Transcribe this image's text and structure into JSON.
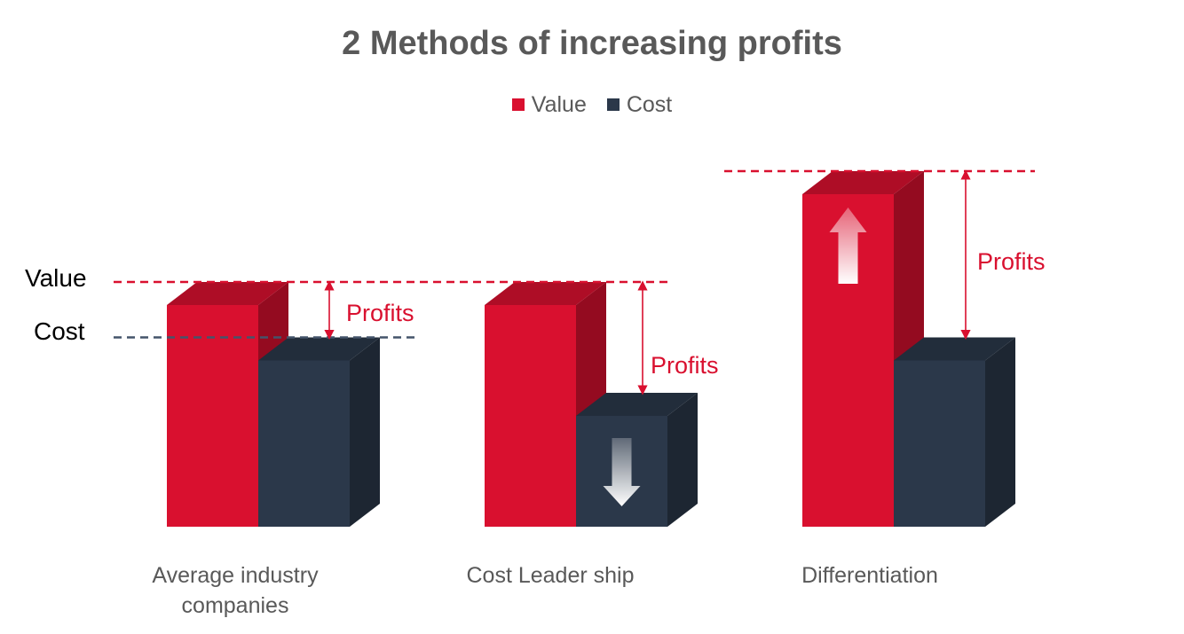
{
  "chart_data": {
    "type": "bar",
    "title": "2 Methods of increasing profits",
    "categories": [
      "Average industry companies",
      "Cost Leader ship",
      "Differentiation"
    ],
    "series": [
      {
        "name": "Value",
        "values": [
          100,
          100,
          150
        ]
      },
      {
        "name": "Cost",
        "values": [
          75,
          50,
          75
        ]
      }
    ],
    "ylim": [
      0,
      150
    ],
    "legend": "top-center",
    "grid": false,
    "colors": {
      "Value": "#d9102f",
      "Cost": "#2b384a",
      "profit_line": "#d9102f",
      "cost_line": "#44546a"
    },
    "reference_labels": {
      "value": "Value",
      "cost": "Cost"
    },
    "annotations": [
      "Profits",
      "Profits",
      "Profits"
    ],
    "icons": [
      "up-arrow-icon",
      "down-arrow-icon"
    ]
  }
}
